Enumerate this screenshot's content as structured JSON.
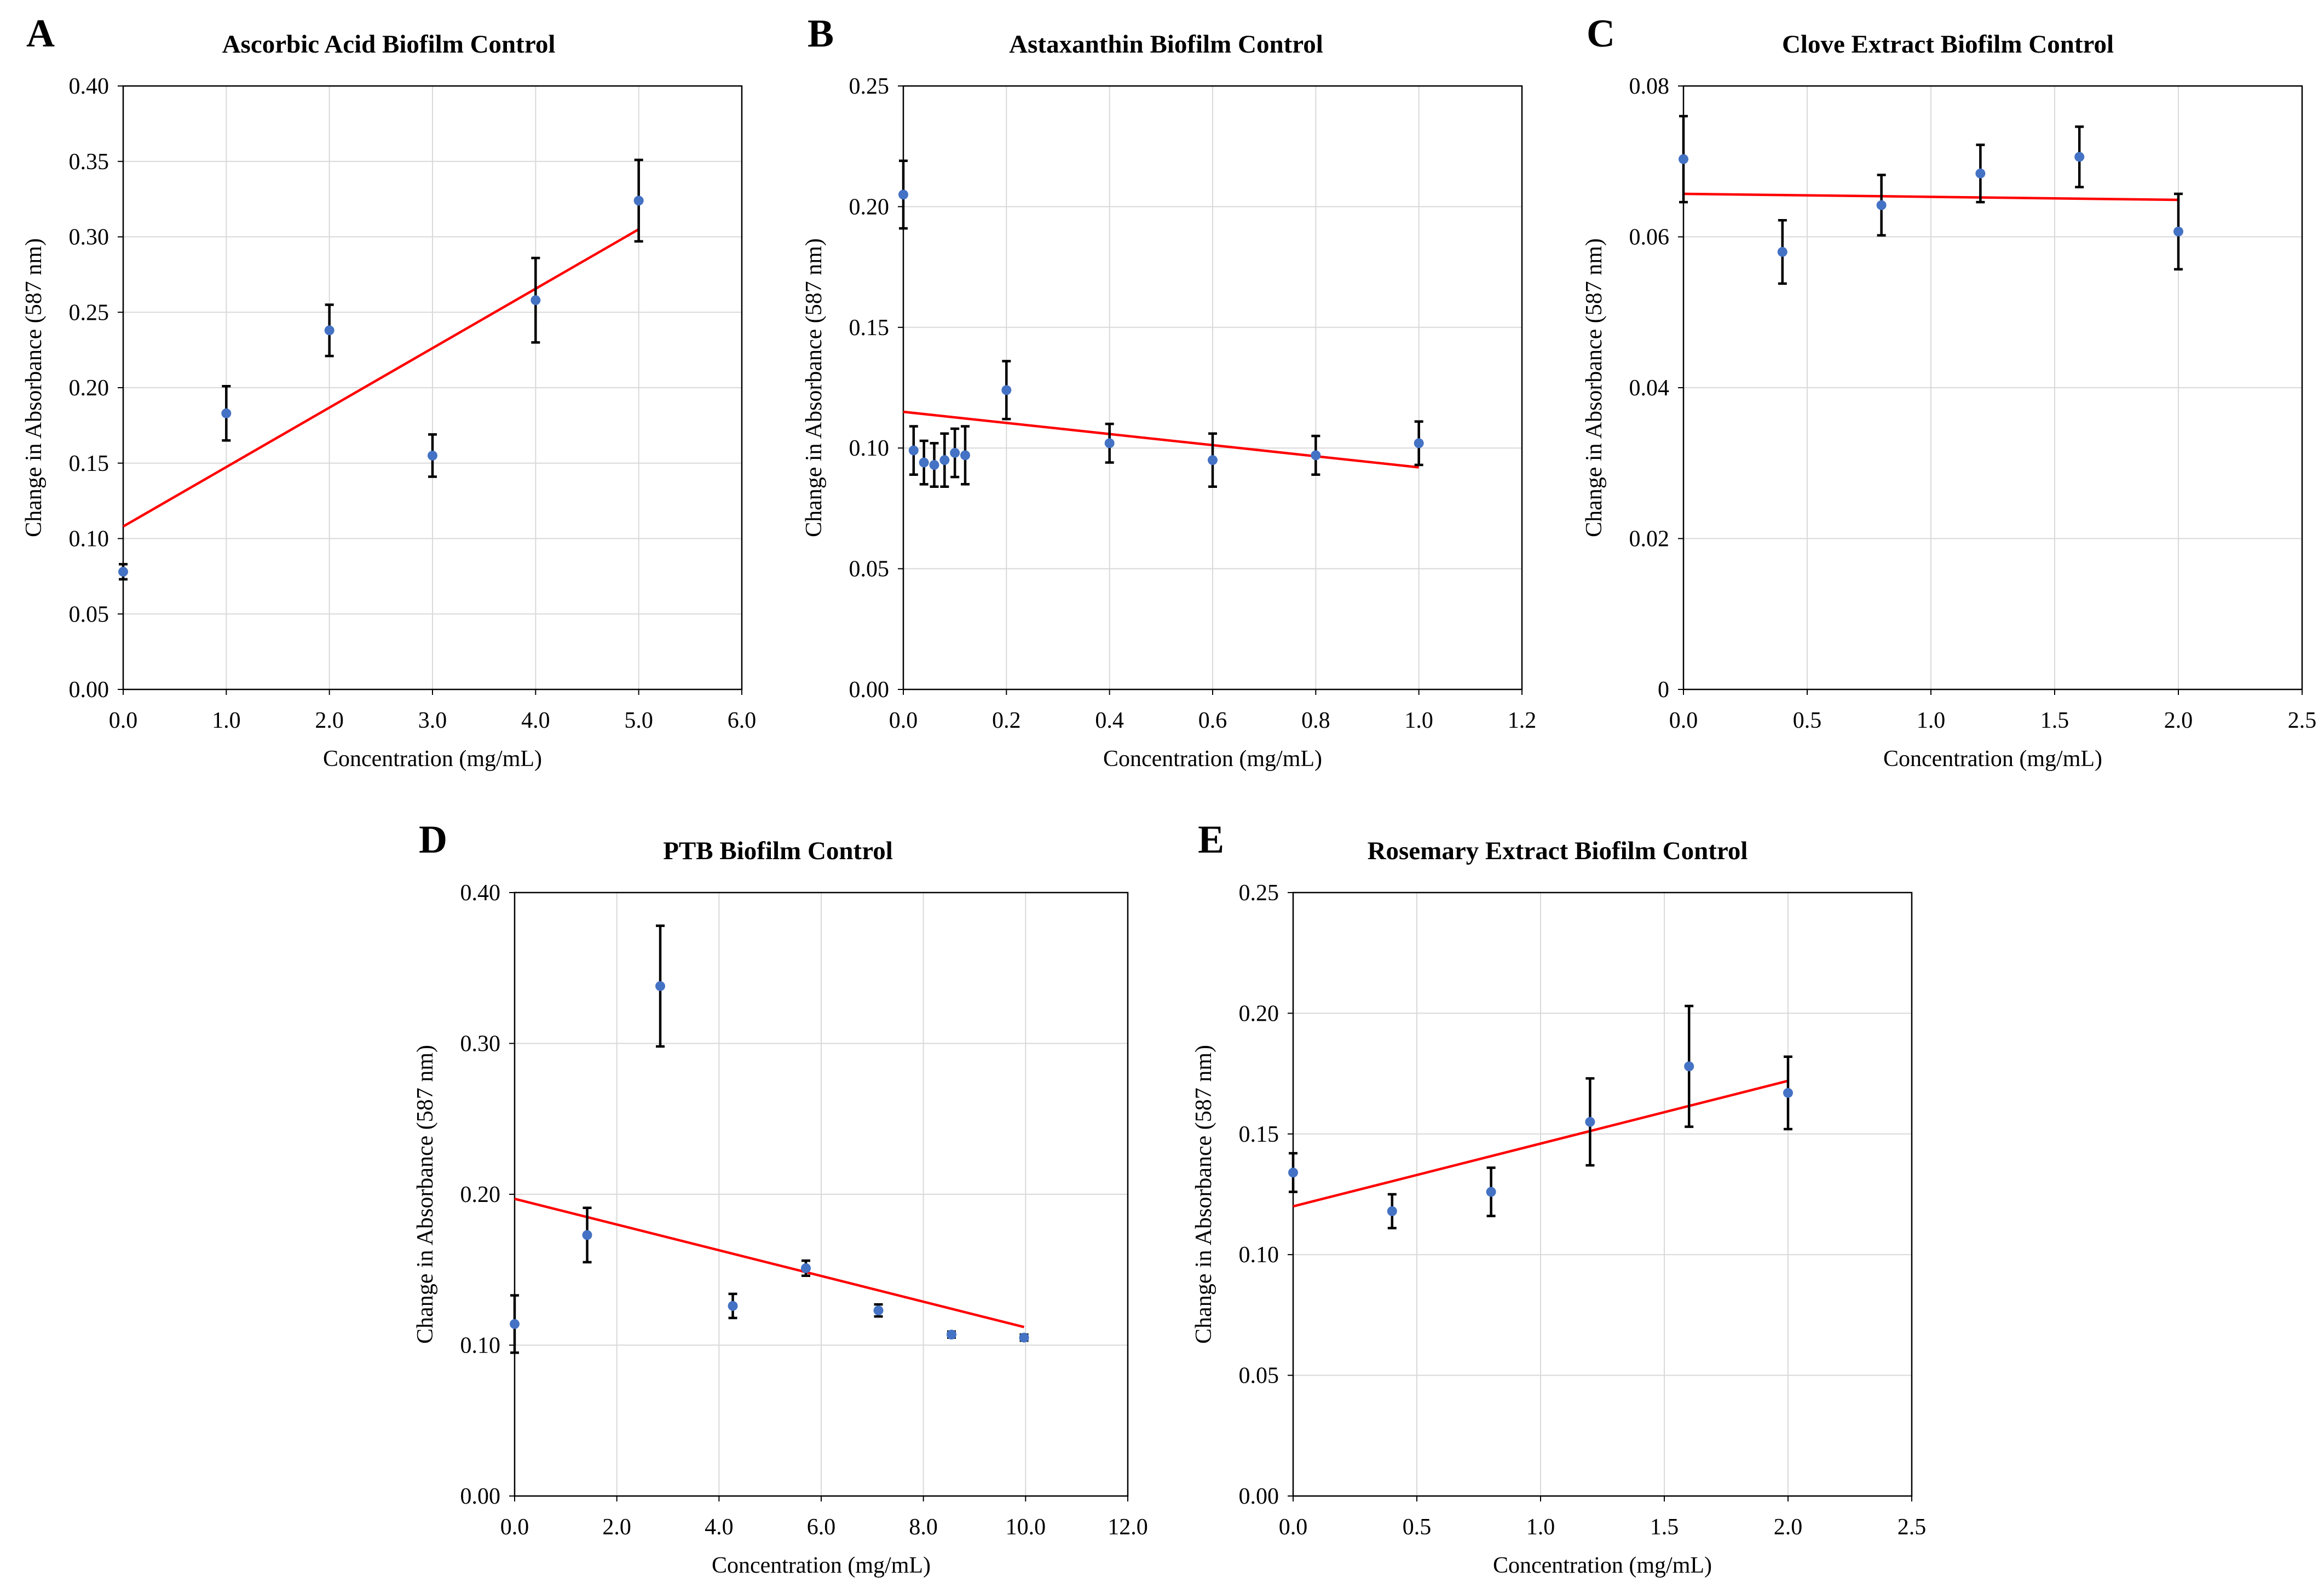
{
  "colors": {
    "point": "#4472c4",
    "trendline": "#ff0000",
    "error_bar": "#000000",
    "grid": "#d9d9d9"
  },
  "chart_data": [
    {
      "panel": "A",
      "type": "scatter",
      "title": "Ascorbic Acid Biofilm Control",
      "xlabel": "Concentration (mg/mL)",
      "ylabel": "Change in Absorbance (587 nm)",
      "xlim": [
        0,
        6
      ],
      "ylim": [
        0,
        0.4
      ],
      "xticks": [
        0,
        1,
        2,
        3,
        4,
        5,
        6
      ],
      "yticks": [
        0,
        0.05,
        0.1,
        0.15,
        0.2,
        0.25,
        0.3,
        0.35,
        0.4
      ],
      "xtick_labels": [
        "0.0",
        "1.0",
        "2.0",
        "3.0",
        "4.0",
        "5.0",
        "6.0"
      ],
      "ytick_labels": [
        "0.00",
        "0.05",
        "0.10",
        "0.15",
        "0.20",
        "0.25",
        "0.30",
        "0.35",
        "0.40"
      ],
      "grid": true,
      "points": [
        {
          "x": 0,
          "y": 0.078,
          "err": 0.005
        },
        {
          "x": 1,
          "y": 0.183,
          "err": 0.018
        },
        {
          "x": 2,
          "y": 0.238,
          "err": 0.017
        },
        {
          "x": 3,
          "y": 0.155,
          "err": 0.014
        },
        {
          "x": 4,
          "y": 0.258,
          "err": 0.028
        },
        {
          "x": 5,
          "y": 0.324,
          "err": 0.027
        }
      ],
      "trendline": {
        "x": [
          0,
          5
        ],
        "y": [
          0.108,
          0.305
        ]
      }
    },
    {
      "panel": "B",
      "type": "scatter",
      "title": "Astaxanthin Biofilm Control",
      "xlabel": "Concentration (mg/mL)",
      "ylabel": "Change in Absorbance (587 nm)",
      "xlim": [
        0,
        1.2
      ],
      "ylim": [
        0,
        0.25
      ],
      "xticks": [
        0,
        0.2,
        0.4,
        0.6,
        0.8,
        1.0,
        1.2
      ],
      "yticks": [
        0,
        0.05,
        0.1,
        0.15,
        0.2,
        0.25
      ],
      "xtick_labels": [
        "0.0",
        "0.2",
        "0.4",
        "0.6",
        "0.8",
        "1.0",
        "1.2"
      ],
      "ytick_labels": [
        "0.00",
        "0.05",
        "0.10",
        "0.15",
        "0.20",
        "0.25"
      ],
      "grid": true,
      "points": [
        {
          "x": 0.0,
          "y": 0.205,
          "err": 0.014
        },
        {
          "x": 0.02,
          "y": 0.099,
          "err": 0.01
        },
        {
          "x": 0.04,
          "y": 0.094,
          "err": 0.009
        },
        {
          "x": 0.06,
          "y": 0.093,
          "err": 0.009
        },
        {
          "x": 0.08,
          "y": 0.095,
          "err": 0.011
        },
        {
          "x": 0.1,
          "y": 0.098,
          "err": 0.01
        },
        {
          "x": 0.12,
          "y": 0.097,
          "err": 0.012
        },
        {
          "x": 0.2,
          "y": 0.124,
          "err": 0.012
        },
        {
          "x": 0.4,
          "y": 0.102,
          "err": 0.008
        },
        {
          "x": 0.6,
          "y": 0.095,
          "err": 0.011
        },
        {
          "x": 0.8,
          "y": 0.097,
          "err": 0.008
        },
        {
          "x": 1.0,
          "y": 0.102,
          "err": 0.009
        }
      ],
      "trendline": {
        "x": [
          0,
          1.0
        ],
        "y": [
          0.115,
          0.092
        ]
      }
    },
    {
      "panel": "C",
      "type": "scatter",
      "title": "Clove Extract Biofilm Control",
      "xlabel": "Concentration (mg/mL)",
      "ylabel": "Change in Absorbance (587 nm)",
      "xlim": [
        0,
        2.5
      ],
      "ylim": [
        0,
        0.08
      ],
      "xticks": [
        0,
        0.5,
        1.0,
        1.5,
        2.0,
        2.5
      ],
      "yticks": [
        0,
        0.02,
        0.04,
        0.06,
        0.08
      ],
      "xtick_labels": [
        "0.0",
        "0.5",
        "1.0",
        "1.5",
        "2.0",
        "2.5"
      ],
      "ytick_labels": [
        "0",
        "0.02",
        "0.04",
        "0.06",
        "0.08"
      ],
      "grid": true,
      "points": [
        {
          "x": 0.0,
          "y": 0.0703,
          "err": 0.0057
        },
        {
          "x": 0.4,
          "y": 0.058,
          "err": 0.0042
        },
        {
          "x": 0.8,
          "y": 0.0642,
          "err": 0.004
        },
        {
          "x": 1.2,
          "y": 0.0684,
          "err": 0.0038
        },
        {
          "x": 1.6,
          "y": 0.0706,
          "err": 0.004
        },
        {
          "x": 2.0,
          "y": 0.0607,
          "err": 0.005
        }
      ],
      "trendline": {
        "x": [
          0,
          2.0
        ],
        "y": [
          0.0657,
          0.0649
        ]
      }
    },
    {
      "panel": "D",
      "type": "scatter",
      "title": "PTB Biofilm Control",
      "xlabel": "Concentration (mg/mL)",
      "ylabel": "Change in Absorbance (587 nm)",
      "xlim": [
        0,
        12
      ],
      "ylim": [
        0,
        0.4
      ],
      "xticks": [
        0,
        2,
        4,
        6,
        8,
        10,
        12
      ],
      "yticks": [
        0,
        0.1,
        0.2,
        0.3,
        0.4
      ],
      "xtick_labels": [
        "0.0",
        "2.0",
        "4.0",
        "6.0",
        "8.0",
        "10.0",
        "12.0"
      ],
      "ytick_labels": [
        "0.00",
        "0.10",
        "0.20",
        "0.30",
        "0.40"
      ],
      "grid": true,
      "points": [
        {
          "x": 0.0,
          "y": 0.114,
          "err": 0.019
        },
        {
          "x": 1.42,
          "y": 0.173,
          "err": 0.018
        },
        {
          "x": 2.85,
          "y": 0.338,
          "err": 0.04
        },
        {
          "x": 4.27,
          "y": 0.126,
          "err": 0.008
        },
        {
          "x": 5.7,
          "y": 0.151,
          "err": 0.005
        },
        {
          "x": 7.12,
          "y": 0.123,
          "err": 0.004
        },
        {
          "x": 8.55,
          "y": 0.107,
          "err": 0.002
        },
        {
          "x": 9.97,
          "y": 0.105,
          "err": 0.002
        }
      ],
      "trendline": {
        "x": [
          0,
          9.97
        ],
        "y": [
          0.197,
          0.112
        ]
      }
    },
    {
      "panel": "E",
      "type": "scatter",
      "title": "Rosemary Extract Biofilm Control",
      "xlabel": "Concentration (mg/mL)",
      "ylabel": "Change in Absorbance (587 nm)",
      "xlim": [
        0,
        2.5
      ],
      "ylim": [
        0,
        0.25
      ],
      "xticks": [
        0,
        0.5,
        1.0,
        1.5,
        2.0,
        2.5
      ],
      "yticks": [
        0,
        0.05,
        0.1,
        0.15,
        0.2,
        0.25
      ],
      "xtick_labels": [
        "0.0",
        "0.5",
        "1.0",
        "1.5",
        "2.0",
        "2.5"
      ],
      "ytick_labels": [
        "0.00",
        "0.05",
        "0.10",
        "0.15",
        "0.20",
        "0.25"
      ],
      "grid": true,
      "points": [
        {
          "x": 0.0,
          "y": 0.134,
          "err": 0.008
        },
        {
          "x": 0.4,
          "y": 0.118,
          "err": 0.007
        },
        {
          "x": 0.8,
          "y": 0.126,
          "err": 0.01
        },
        {
          "x": 1.2,
          "y": 0.155,
          "err": 0.018
        },
        {
          "x": 1.6,
          "y": 0.178,
          "err": 0.025
        },
        {
          "x": 2.0,
          "y": 0.167,
          "err": 0.015
        }
      ],
      "trendline": {
        "x": [
          0,
          2.0
        ],
        "y": [
          0.12,
          0.172
        ]
      }
    }
  ]
}
